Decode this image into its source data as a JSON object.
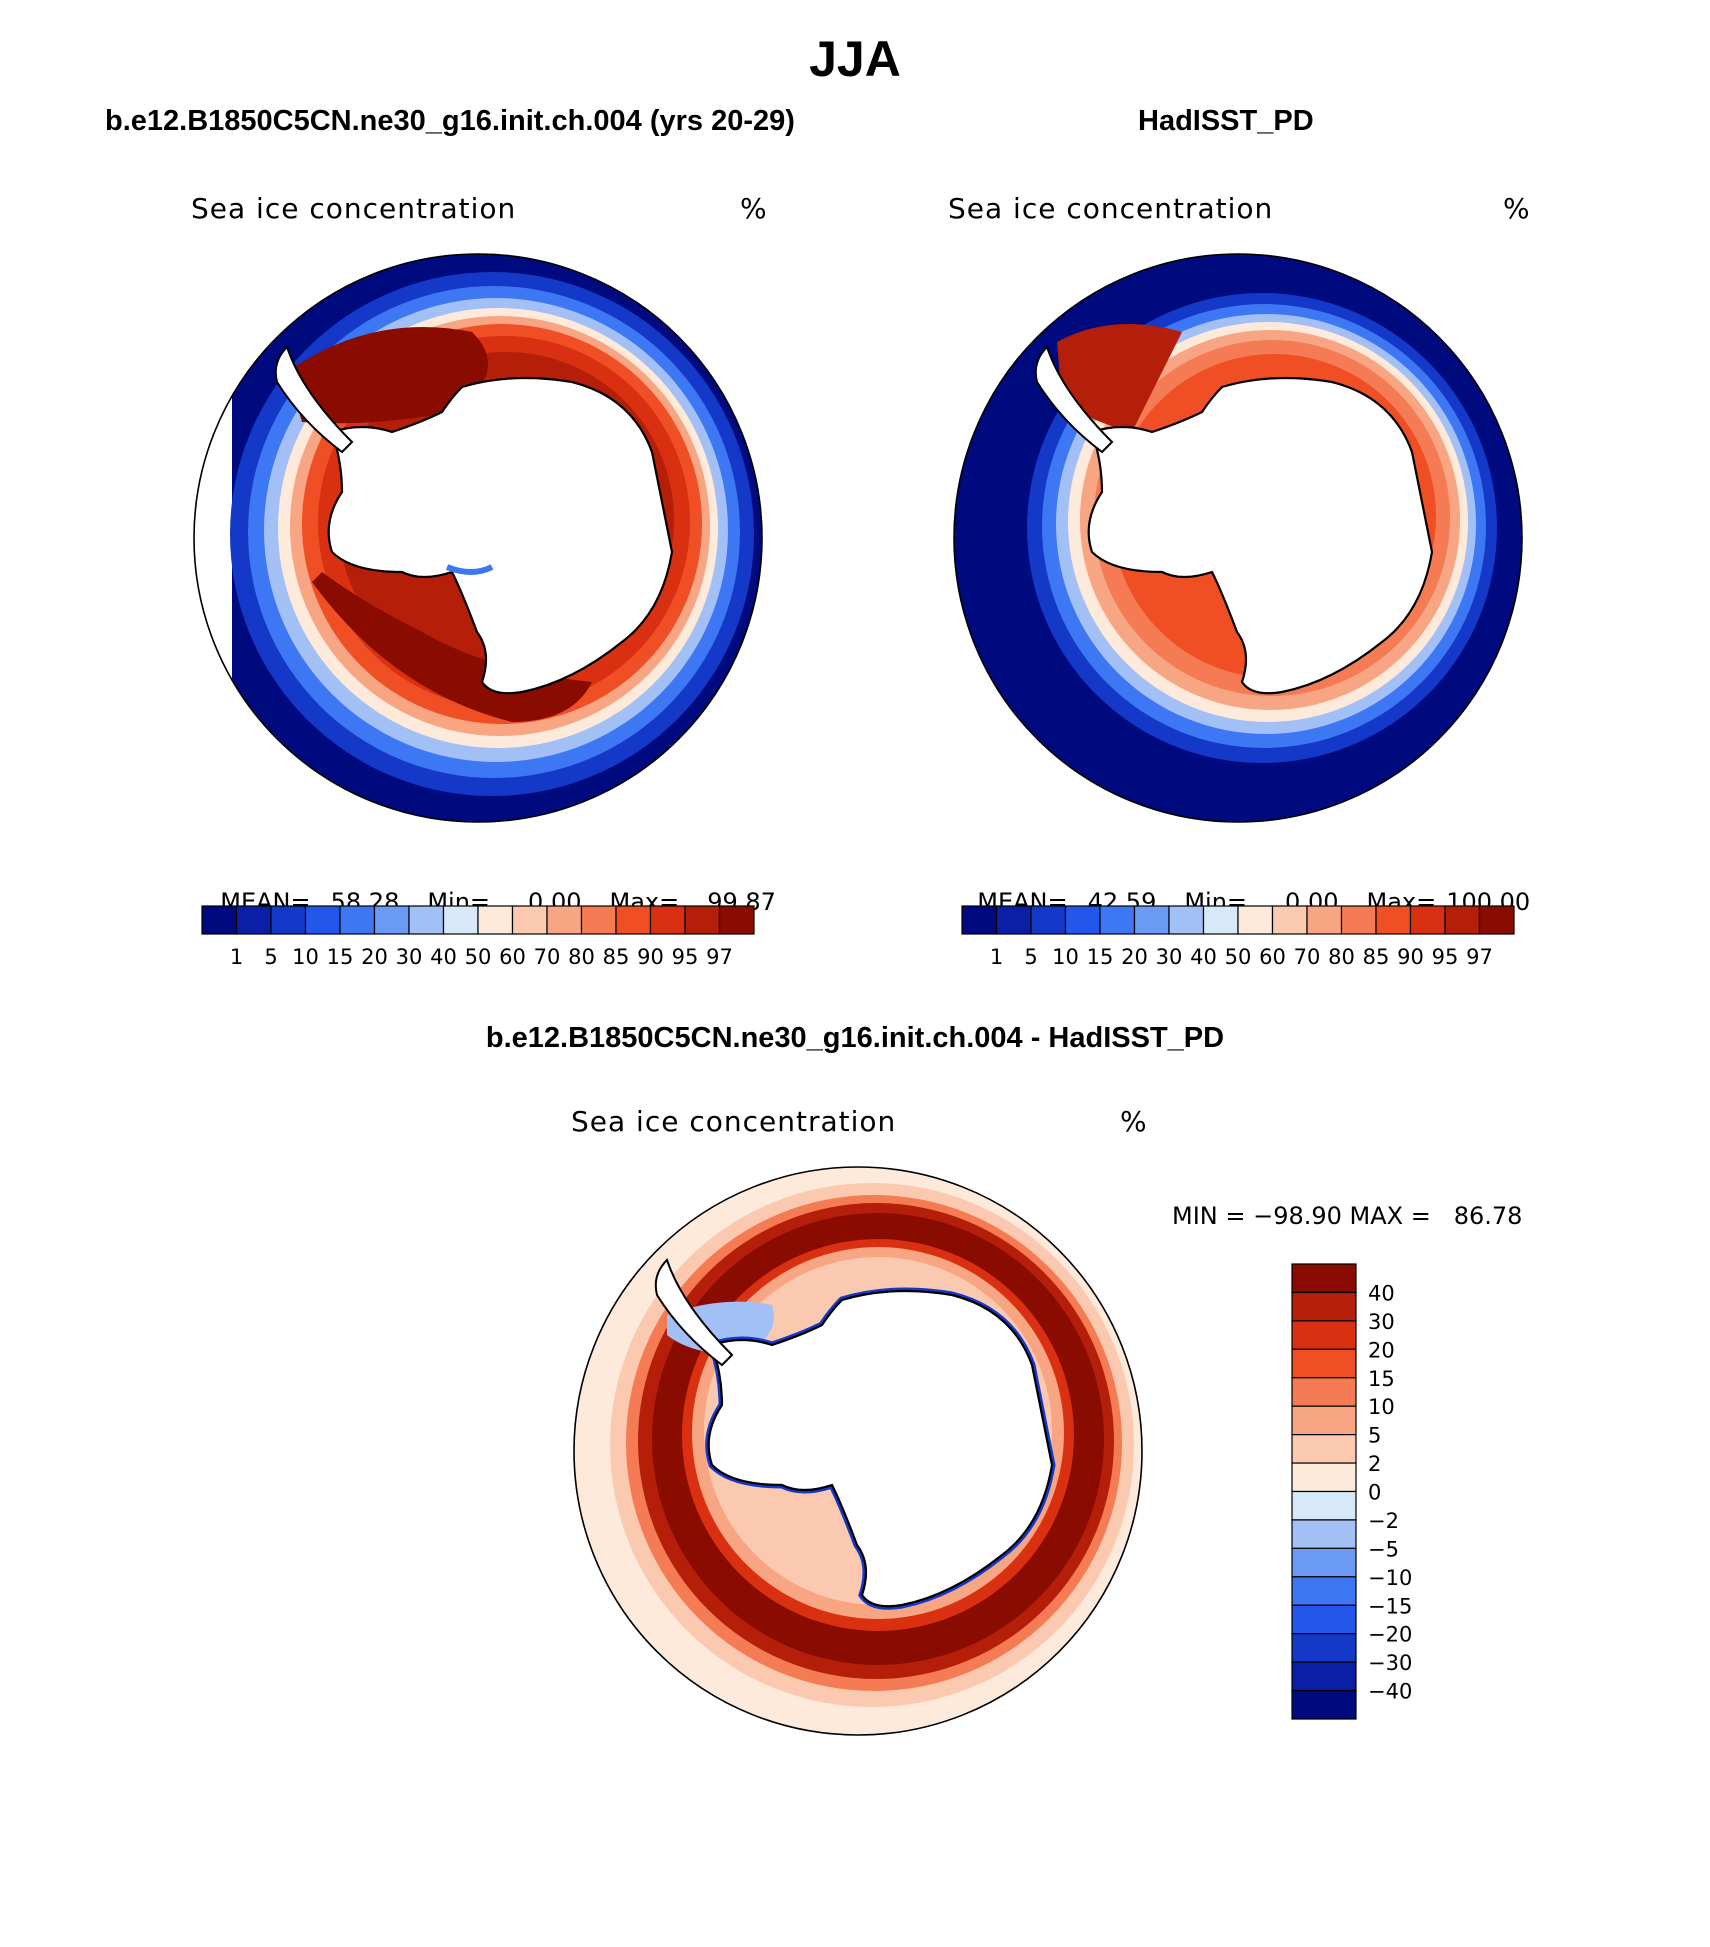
{
  "main_title": "JJA",
  "panels": {
    "model": {
      "title": "b.e12.B1850C5CN.ne30_g16.init.ch.004 (yrs 20-29)",
      "variable": "Sea ice concentration",
      "units": "%",
      "stats": {
        "mean_label": "MEAN=",
        "mean": "58.28",
        "min_label": "Min=",
        "min": "0.00",
        "max_label": "Max=",
        "max": "99.87"
      }
    },
    "obs": {
      "title": "HadISST_PD",
      "variable": "Sea ice concentration",
      "units": "%",
      "stats": {
        "mean_label": "MEAN=",
        "mean": "42.59",
        "min_label": "Min=",
        "min": "0.00",
        "max_label": "Max=",
        "max": "100.00"
      }
    },
    "diff": {
      "title": "b.e12.B1850C5CN.ne30_g16.init.ch.004 - HadISST_PD",
      "variable": "Sea ice concentration",
      "units": "%",
      "minmax": "MIN = −98.90 MAX =   86.78"
    }
  },
  "colorbar_abs": {
    "labels": [
      "1",
      "5",
      "10",
      "15",
      "20",
      "30",
      "40",
      "50",
      "60",
      "70",
      "80",
      "85",
      "90",
      "95",
      "97"
    ],
    "colors": [
      "#000a7f",
      "#0a1ea6",
      "#1438c8",
      "#2357ec",
      "#3e77f3",
      "#6b9af4",
      "#a2c0f6",
      "#d7e8f8",
      "#fdeadb",
      "#fbc9b0",
      "#f7a583",
      "#f47b54",
      "#f04f25",
      "#d83010",
      "#b51e08",
      "#8a0c00"
    ]
  },
  "colorbar_diff": {
    "labels": [
      "40",
      "30",
      "20",
      "15",
      "10",
      "5",
      "2",
      "0",
      "−2",
      "−5",
      "−10",
      "−15",
      "−20",
      "−30",
      "−40"
    ],
    "colors": [
      "#8a0c00",
      "#b51e08",
      "#d83010",
      "#f04f25",
      "#f47b54",
      "#f7a583",
      "#fbc9b0",
      "#fdeadb",
      "#d7e8f8",
      "#a2c0f6",
      "#6b9af4",
      "#3e77f3",
      "#2357ec",
      "#1438c8",
      "#0a1ea6",
      "#000a7f"
    ]
  },
  "map_colors": {
    "ocean_open": "#000a7f",
    "blue2": "#1438c8",
    "blue3": "#3e77f3",
    "blue4": "#a2c0f6",
    "pale": "#fdeadb",
    "light_orange": "#fbc9b0",
    "mid_orange": "#f7a583",
    "orange": "#f47b54",
    "red_orange": "#f04f25",
    "red": "#d83010",
    "dark_red": "#b51e08",
    "maroon": "#8a0c00",
    "land": "#ffffff"
  }
}
